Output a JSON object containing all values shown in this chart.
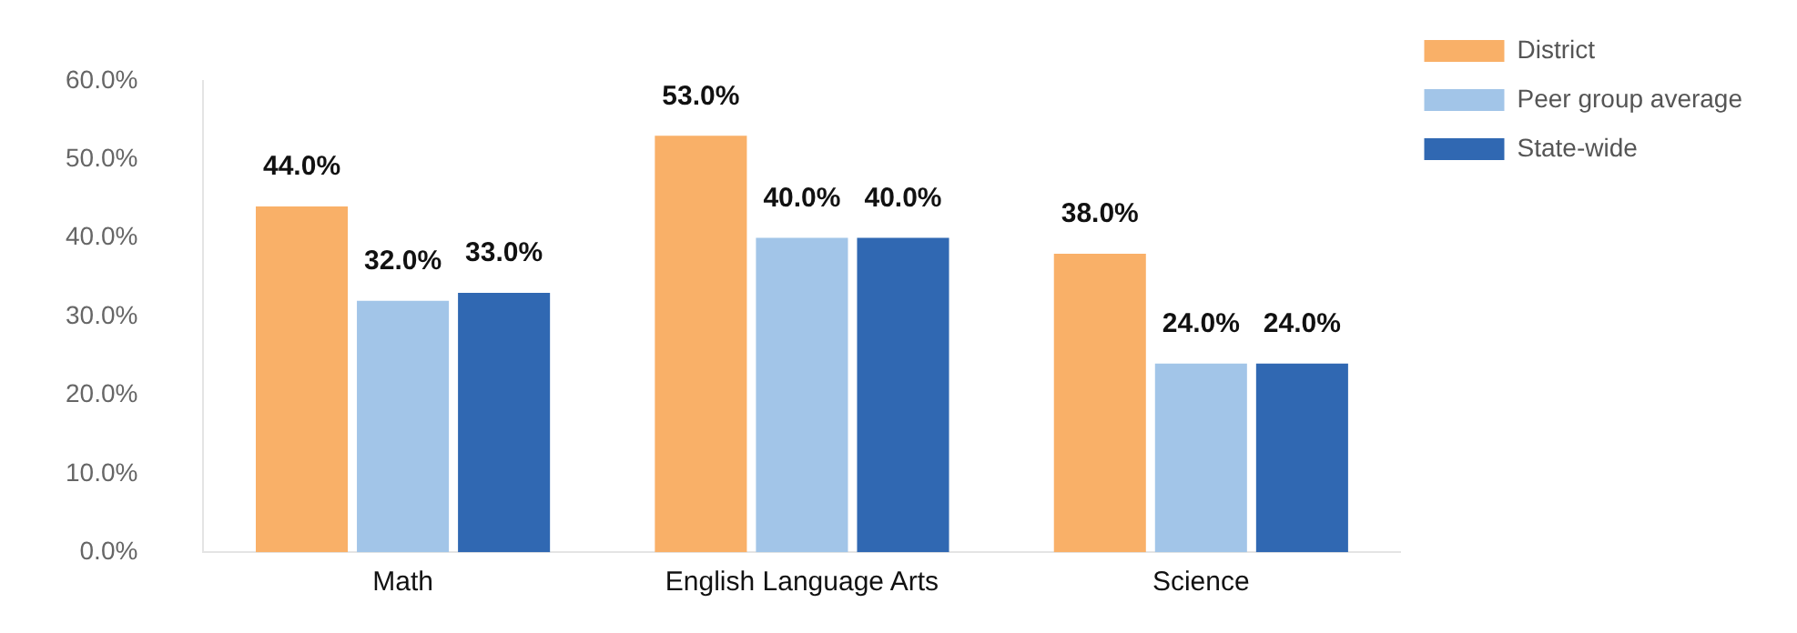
{
  "chart_data": {
    "type": "bar",
    "categories": [
      "Math",
      "English Language Arts",
      "Science"
    ],
    "series": [
      {
        "name": "District",
        "color": "#f9b068",
        "values": [
          44,
          53,
          38
        ],
        "value_labels": [
          "44.0%",
          "53.0%",
          "38.0%"
        ]
      },
      {
        "name": "Peer group average",
        "color": "#a2c5e8",
        "values": [
          32,
          40,
          24
        ],
        "value_labels": [
          "32.0%",
          "40.0%",
          "24.0%"
        ]
      },
      {
        "name": "State-wide",
        "color": "#3068b2",
        "values": [
          33,
          40,
          24
        ],
        "value_labels": [
          "33.0%",
          "40.0%",
          "24.0%"
        ]
      }
    ],
    "ylim": [
      0,
      60
    ],
    "yticks": [
      {
        "value": 0,
        "label": "0.0%"
      },
      {
        "value": 10,
        "label": "10.0%"
      },
      {
        "value": 20,
        "label": "20.0%"
      },
      {
        "value": 30,
        "label": "30.0%"
      },
      {
        "value": 40,
        "label": "40.0%"
      },
      {
        "value": 50,
        "label": "50.0%"
      },
      {
        "value": 60,
        "label": "60.0%"
      }
    ],
    "grid": false,
    "legend": "top right"
  }
}
